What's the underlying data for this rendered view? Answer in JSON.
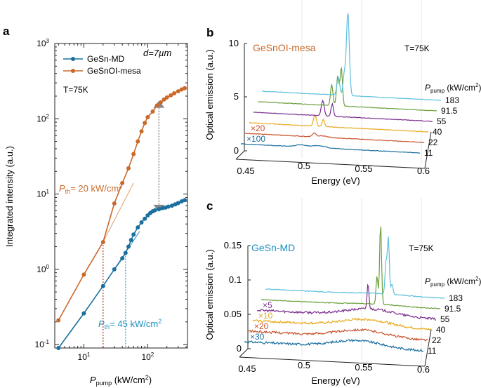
{
  "chart_data": [
    {
      "panel": "a",
      "type": "line",
      "xscale": "log",
      "yscale": "log",
      "xlim": [
        3.5,
        420
      ],
      "ylim": [
        0.09,
        1000
      ],
      "xlabel_main": "P",
      "xlabel_sub": "pump",
      "xlabel_unit": "(kW/cm",
      "ylabel": "Integrated intensity (a.u.)",
      "xticks": [
        {
          "v": 10,
          "base": "10",
          "exp": "1"
        },
        {
          "v": 100,
          "base": "10",
          "exp": "2"
        }
      ],
      "yticks": [
        {
          "v": 0.1,
          "base": "10",
          "exp": "-1"
        },
        {
          "v": 1,
          "base": "10",
          "exp": "0"
        },
        {
          "v": 10,
          "base": "10",
          "exp": "1"
        },
        {
          "v": 100,
          "base": "10",
          "exp": "2"
        },
        {
          "v": 1000,
          "base": "10",
          "exp": "3"
        }
      ],
      "series": [
        {
          "name": "GeSn-MD",
          "color": "#1a6f9e",
          "x": [
            4,
            10,
            20,
            30,
            40,
            45,
            50,
            55,
            60,
            70,
            80,
            90,
            100,
            110,
            120,
            130,
            150,
            170,
            190,
            210,
            240,
            270,
            300,
            340,
            380
          ],
          "y": [
            0.09,
            0.26,
            0.6,
            1.0,
            1.4,
            1.65,
            2.0,
            2.45,
            2.9,
            3.6,
            4.2,
            4.7,
            5.2,
            5.6,
            5.9,
            6.1,
            6.3,
            6.5,
            6.6,
            6.8,
            7.0,
            7.3,
            7.6,
            8.0,
            8.3
          ]
        },
        {
          "name": "GeSnOI-mesa",
          "color": "#c9692a",
          "x": [
            4,
            10,
            20,
            30,
            40,
            50,
            60,
            70,
            80,
            90,
            100,
            120,
            140,
            160,
            180,
            200,
            230,
            260,
            300,
            340,
            380
          ],
          "y": [
            0.21,
            0.85,
            2.3,
            7.5,
            14,
            22,
            34,
            50,
            68,
            88,
            105,
            125,
            150,
            165,
            180,
            192,
            205,
            218,
            232,
            245,
            255
          ]
        }
      ],
      "legend": [
        "GeSn-MD",
        "GeSnOI-mesa"
      ],
      "annotations": {
        "panel_label": "a",
        "thickness": "d=7µm",
        "temperature": "T=75K",
        "pth_orange": "P",
        "pth_orange_sub": "th",
        "pth_orange_val": "= 20 kW/cm",
        "pth_blue": "P",
        "pth_blue_sub": "th",
        "pth_blue_val": "= 45 kW/cm",
        "superscript": "2",
        "unit_close": ")"
      }
    },
    {
      "panel": "b",
      "type": "line",
      "title": "GeSnOI-mesa",
      "temperature": "T=75K",
      "xlabel": "Energy (eV)",
      "ylabel": "Optical emission (a.u.)",
      "xticks": [
        "0.45",
        "0.5",
        "0.55",
        "0.6"
      ],
      "yticks": [
        "0",
        "5",
        "10"
      ],
      "ppump_label_main": "P",
      "ppump_label_sub": "pump",
      "ppump_label_unit": "(kW/cm",
      "series": [
        {
          "power": "11",
          "color": "#1a6f9e",
          "multiplier": "×100"
        },
        {
          "power": "22",
          "color": "#c9512a",
          "multiplier": "×20"
        },
        {
          "power": "40",
          "color": "#e8a91c",
          "multiplier": ""
        },
        {
          "power": "55",
          "color": "#7b2d8e",
          "multiplier": ""
        },
        {
          "power": "91.5",
          "color": "#6a9f3a",
          "multiplier": ""
        },
        {
          "power": "183",
          "color": "#5bc0de",
          "multiplier": ""
        }
      ]
    },
    {
      "panel": "c",
      "type": "line",
      "title": "GeSn-MD",
      "temperature": "T=75K",
      "xlabel": "Energy (eV)",
      "ylabel": "Optical emission (a.u.)",
      "xticks": [
        "0.45",
        "0.5",
        "0.55",
        "0.6"
      ],
      "yticks": [
        "0",
        "0.05",
        "0.1",
        "0.15"
      ],
      "ppump_label_main": "P",
      "ppump_label_sub": "pump",
      "ppump_label_unit": "(kW/cm",
      "series": [
        {
          "power": "11",
          "color": "#1a6f9e",
          "multiplier": "×30"
        },
        {
          "power": "22",
          "color": "#c9512a",
          "multiplier": "×20"
        },
        {
          "power": "40",
          "color": "#e8a91c",
          "multiplier": "×10"
        },
        {
          "power": "55",
          "color": "#7b2d8e",
          "multiplier": "×5"
        },
        {
          "power": "91.5",
          "color": "#6a9f3a",
          "multiplier": ""
        },
        {
          "power": "183",
          "color": "#5bc0de",
          "multiplier": ""
        }
      ]
    }
  ],
  "panel_labels": {
    "b": "b",
    "c": "c"
  }
}
